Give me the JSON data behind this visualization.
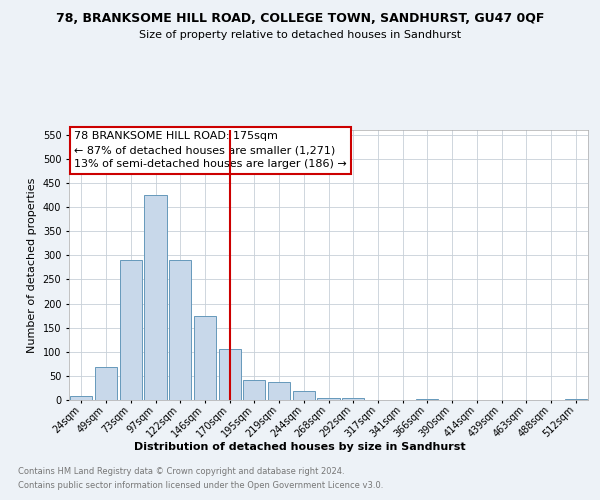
{
  "title": "78, BRANKSOME HILL ROAD, COLLEGE TOWN, SANDHURST, GU47 0QF",
  "subtitle": "Size of property relative to detached houses in Sandhurst",
  "xlabel": "Distribution of detached houses by size in Sandhurst",
  "ylabel": "Number of detached properties",
  "bar_labels": [
    "24sqm",
    "49sqm",
    "73sqm",
    "97sqm",
    "122sqm",
    "146sqm",
    "170sqm",
    "195sqm",
    "219sqm",
    "244sqm",
    "268sqm",
    "292sqm",
    "317sqm",
    "341sqm",
    "366sqm",
    "390sqm",
    "414sqm",
    "439sqm",
    "463sqm",
    "488sqm",
    "512sqm"
  ],
  "bar_values": [
    8,
    68,
    290,
    425,
    290,
    175,
    105,
    42,
    38,
    18,
    5,
    5,
    0,
    0,
    3,
    0,
    0,
    0,
    0,
    0,
    3
  ],
  "bar_color": "#c8d8ea",
  "bar_edge_color": "#6699bb",
  "vline_x": 6,
  "vline_color": "#cc0000",
  "annotation_box_text": "78 BRANKSOME HILL ROAD: 175sqm\n← 87% of detached houses are smaller (1,271)\n13% of semi-detached houses are larger (186) →",
  "ylim": [
    0,
    560
  ],
  "yticks": [
    0,
    50,
    100,
    150,
    200,
    250,
    300,
    350,
    400,
    450,
    500,
    550
  ],
  "footer_line1": "Contains HM Land Registry data © Crown copyright and database right 2024.",
  "footer_line2": "Contains public sector information licensed under the Open Government Licence v3.0.",
  "bg_color": "#edf2f7",
  "plot_bg_color": "#ffffff",
  "grid_color": "#c8d0d8"
}
